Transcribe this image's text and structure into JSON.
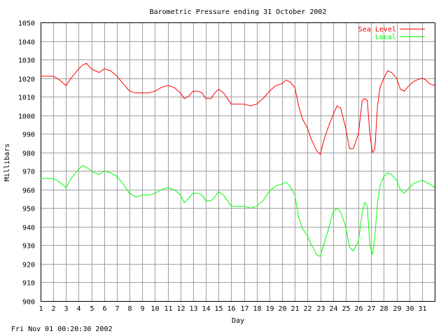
{
  "timestamp": "Fri Nov 01 00:20:30 2002",
  "chart_data": {
    "type": "line",
    "title": "Barometric Pressure ending 31 October 2002",
    "xlabel": "Day",
    "ylabel": "Millibars",
    "xlim": [
      1,
      32
    ],
    "ylim": [
      900,
      1050
    ],
    "xticks": [
      "1",
      "2",
      "3",
      "4",
      "5",
      "6",
      "7",
      "8",
      "9",
      "10",
      "11",
      "12",
      "13",
      "14",
      "15",
      "16",
      "17",
      "18",
      "19",
      "20",
      "21",
      "22",
      "23",
      "24",
      "25",
      "26",
      "27",
      "28",
      "29",
      "30",
      "31"
    ],
    "yticks": [
      900,
      910,
      920,
      930,
      940,
      950,
      960,
      970,
      980,
      990,
      1000,
      1010,
      1020,
      1030,
      1040,
      1050
    ],
    "grid": true,
    "legend_position": "top-right",
    "series": [
      {
        "name": "Sea Level",
        "color": "#ff0000",
        "x": [
          1,
          1.5,
          2,
          2.5,
          3,
          3.4,
          4,
          4.3,
          4.6,
          5,
          5.3,
          5.6,
          6,
          6.5,
          7,
          7.5,
          8,
          8.5,
          9,
          9.5,
          10,
          10.5,
          11,
          11.5,
          12,
          12.3,
          12.6,
          13,
          13.4,
          13.7,
          14,
          14.4,
          14.7,
          15,
          15.4,
          15.7,
          16,
          16.5,
          17,
          17.5,
          18,
          18.5,
          19,
          19.5,
          20,
          20.3,
          20.6,
          21,
          21.3,
          21.6,
          22,
          22.3,
          22.5,
          22.7,
          23,
          23.3,
          23.7,
          24,
          24.3,
          24.6,
          25,
          25.3,
          25.6,
          26,
          26.3,
          26.5,
          26.7,
          26.9,
          27.1,
          27.3,
          27.5,
          27.7,
          28,
          28.3,
          28.6,
          29,
          29.3,
          29.6,
          30,
          30.3,
          30.6,
          31,
          31.3,
          31.6,
          32
        ],
        "values": [
          1021,
          1021,
          1021,
          1019,
          1016,
          1020,
          1025,
          1027,
          1028,
          1025,
          1024,
          1023,
          1025,
          1024,
          1021,
          1017,
          1013,
          1012,
          1012,
          1012,
          1013,
          1015,
          1016,
          1015,
          1012,
          1009,
          1010,
          1013,
          1013,
          1012,
          1009,
          1009,
          1012,
          1014,
          1012,
          1009,
          1006,
          1006,
          1006,
          1005,
          1006,
          1009,
          1013,
          1016,
          1017,
          1019,
          1018,
          1015,
          1005,
          998,
          993,
          987,
          984,
          981,
          979,
          987,
          995,
          1000,
          1005,
          1004,
          993,
          982,
          982,
          990,
          1008,
          1009,
          1008,
          990,
          980,
          982,
          1005,
          1015,
          1020,
          1024,
          1023,
          1020,
          1014,
          1013,
          1016,
          1018,
          1019,
          1020,
          1019,
          1017,
          1016
        ]
      },
      {
        "name": "Local",
        "color": "#00ff00",
        "x": [
          1,
          1.5,
          2,
          2.5,
          3,
          3.4,
          4,
          4.3,
          4.6,
          5,
          5.3,
          5.6,
          6,
          6.5,
          7,
          7.5,
          8,
          8.5,
          9,
          9.5,
          10,
          10.5,
          11,
          11.5,
          12,
          12.3,
          12.6,
          13,
          13.4,
          13.7,
          14,
          14.4,
          14.7,
          15,
          15.4,
          15.7,
          16,
          16.5,
          17,
          17.5,
          18,
          18.5,
          19,
          19.5,
          20,
          20.3,
          20.6,
          21,
          21.3,
          21.6,
          22,
          22.3,
          22.5,
          22.7,
          23,
          23.3,
          23.7,
          24,
          24.3,
          24.6,
          25,
          25.3,
          25.6,
          26,
          26.3,
          26.5,
          26.7,
          26.9,
          27.1,
          27.3,
          27.5,
          27.7,
          28,
          28.3,
          28.6,
          29,
          29.3,
          29.6,
          30,
          30.3,
          30.6,
          31,
          31.3,
          31.6,
          32
        ],
        "values": [
          966,
          966,
          966,
          964,
          961,
          966,
          971,
          973,
          972,
          970,
          969,
          968,
          970,
          969,
          967,
          963,
          958,
          956,
          957,
          957,
          958,
          960,
          961,
          960,
          957,
          953,
          955,
          958,
          958,
          957,
          954,
          954,
          956,
          959,
          957,
          954,
          951,
          951,
          951,
          950,
          951,
          954,
          959,
          962,
          963,
          964,
          962,
          957,
          945,
          939,
          935,
          930,
          928,
          925,
          924,
          931,
          940,
          948,
          950,
          948,
          940,
          929,
          927,
          932,
          948,
          953,
          951,
          930,
          925,
          935,
          953,
          962,
          967,
          969,
          968,
          965,
          960,
          958,
          961,
          963,
          964,
          965,
          964,
          963,
          961
        ]
      }
    ]
  }
}
